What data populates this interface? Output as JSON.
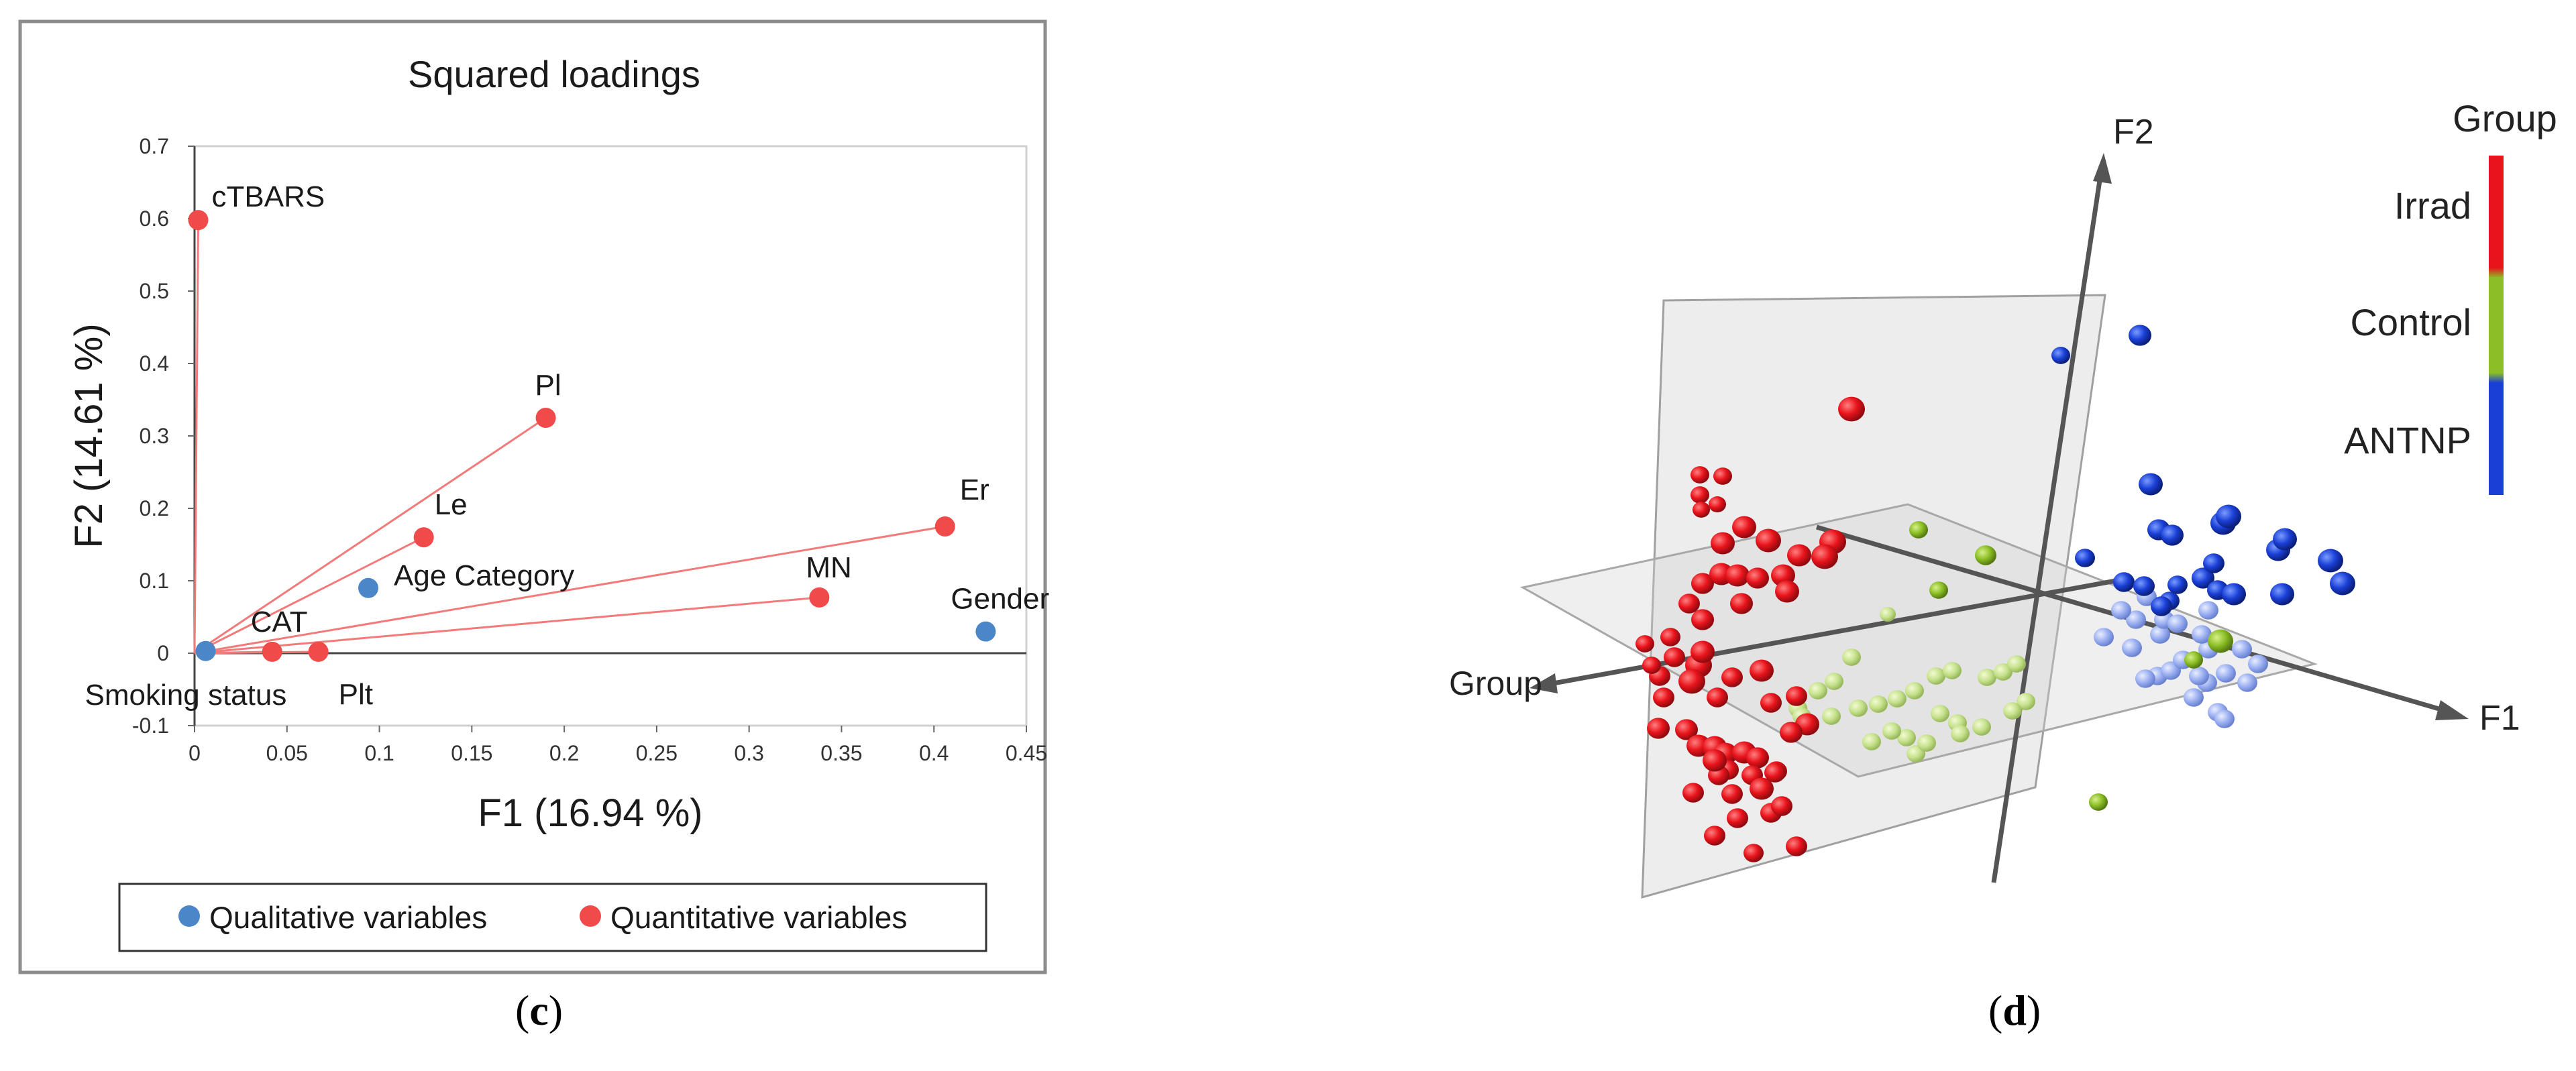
{
  "panels": [
    {
      "caption_letter": "c"
    },
    {
      "caption_letter": "d"
    }
  ],
  "chart_data": [
    {
      "type": "scatter",
      "title": "Squared loadings",
      "xlabel": "F1 (16.94 %)",
      "ylabel": "F2 (14.61 %)",
      "xlim": [
        0,
        0.45
      ],
      "ylim": [
        -0.1,
        0.7
      ],
      "xticks": [
        "0",
        "0.05",
        "0.1",
        "0.15",
        "0.2",
        "0.25",
        "0.3",
        "0.35",
        "0.4",
        "0.45"
      ],
      "yticks": [
        "-0.1",
        "0",
        "0.1",
        "0.2",
        "0.3",
        "0.4",
        "0.5",
        "0.6",
        "0.7"
      ],
      "grid": false,
      "legend_position": "bottom",
      "legend": [
        "Qualitative variables",
        "Quantitative variables"
      ],
      "colors": {
        "qualitative": "#4a86c8",
        "quantitative": "#f04a4a",
        "line": "#f37a7a"
      },
      "points": [
        {
          "label": "cTBARS",
          "x": 0.002,
          "y": 0.598,
          "kind": "quantitative"
        },
        {
          "label": "Pl",
          "x": 0.19,
          "y": 0.325,
          "kind": "quantitative"
        },
        {
          "label": "Le",
          "x": 0.124,
          "y": 0.16,
          "kind": "quantitative"
        },
        {
          "label": "Er",
          "x": 0.406,
          "y": 0.175,
          "kind": "quantitative"
        },
        {
          "label": "MN",
          "x": 0.338,
          "y": 0.077,
          "kind": "quantitative"
        },
        {
          "label": "CAT",
          "x": 0.042,
          "y": 0.002,
          "kind": "quantitative"
        },
        {
          "label": "Plt",
          "x": 0.067,
          "y": 0.002,
          "kind": "quantitative"
        },
        {
          "label": "Age Category",
          "x": 0.094,
          "y": 0.09,
          "kind": "qualitative"
        },
        {
          "label": "Gender",
          "x": 0.428,
          "y": 0.03,
          "kind": "qualitative"
        },
        {
          "label": "Smoking status",
          "x": 0.006,
          "y": 0.003,
          "kind": "qualitative"
        }
      ]
    },
    {
      "type": "scatter",
      "axes": [
        "F1",
        "F2",
        "Group"
      ],
      "legend_title": "Group",
      "legend": [
        "Irrad",
        "Control",
        "ANTNP"
      ],
      "colors": {
        "Irrad": "#e8131b",
        "Control": "#8cbf26",
        "ANTNP": "#1a3fd6"
      },
      "series": [
        {
          "name": "Irrad",
          "count": 50
        },
        {
          "name": "Control",
          "count": 25
        },
        {
          "name": "ANTNP",
          "count": 40
        }
      ]
    }
  ]
}
